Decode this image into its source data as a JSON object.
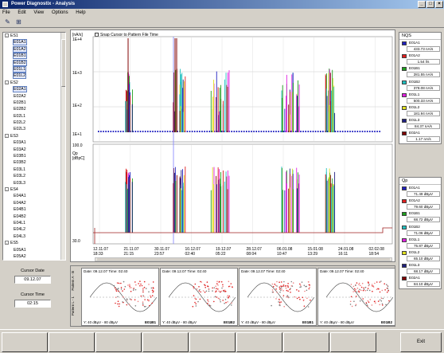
{
  "window": {
    "title": "Power Diagnostix - Analysis"
  },
  "menu": [
    "File",
    "Edit",
    "View",
    "Options",
    "Help"
  ],
  "tree": [
    {
      "label": "ES1",
      "level": 0,
      "expand": "-"
    },
    {
      "label": "E01A1",
      "level": 1,
      "selected": true
    },
    {
      "label": "E01A2",
      "level": 1,
      "selected": true
    },
    {
      "label": "E01B1",
      "level": 1,
      "selected": true
    },
    {
      "label": "E01B2",
      "level": 1,
      "selected": true
    },
    {
      "label": "E01L1",
      "level": 1,
      "selected": true
    },
    {
      "label": "E01L2",
      "level": 1,
      "selected": true
    },
    {
      "label": "ES2",
      "level": 0,
      "expand": "-"
    },
    {
      "label": "E02A1",
      "level": 1,
      "selected": true
    },
    {
      "label": "E02A2",
      "level": 1
    },
    {
      "label": "E02B1",
      "level": 1
    },
    {
      "label": "E02B2",
      "level": 1
    },
    {
      "label": "E02L1",
      "level": 1
    },
    {
      "label": "E02L2",
      "level": 1
    },
    {
      "label": "E02L3",
      "level": 1
    },
    {
      "label": "ES3",
      "level": 0,
      "expand": "-"
    },
    {
      "label": "E03A1",
      "level": 1
    },
    {
      "label": "E03A2",
      "level": 1
    },
    {
      "label": "E03B1",
      "level": 1
    },
    {
      "label": "E03B2",
      "level": 1
    },
    {
      "label": "E03L1",
      "level": 1
    },
    {
      "label": "E03L2",
      "level": 1
    },
    {
      "label": "E03L3",
      "level": 1
    },
    {
      "label": "ES4",
      "level": 0,
      "expand": "-"
    },
    {
      "label": "E04A1",
      "level": 1
    },
    {
      "label": "E04A2",
      "level": 1
    },
    {
      "label": "E04B1",
      "level": 1
    },
    {
      "label": "E04B2",
      "level": 1
    },
    {
      "label": "E04L1",
      "level": 1
    },
    {
      "label": "E04L2",
      "level": 1
    },
    {
      "label": "E04L3",
      "level": 1
    },
    {
      "label": "ES5",
      "level": 0,
      "expand": "-"
    },
    {
      "label": "E05A1",
      "level": 1
    },
    {
      "label": "E05A2",
      "level": 1
    }
  ],
  "cursor": {
    "date_label": "Cursor Date",
    "date": "09.12.07",
    "time_label": "Cursor Time",
    "time": "02:15"
  },
  "chart_top": {
    "unit": "[nA/s]",
    "snap_label": "Snap Cursor to Pattern File Time",
    "y_ticks": [
      "1E+4",
      "1E+3",
      "1E+2",
      "1E+1"
    ]
  },
  "chart_bottom": {
    "unit": "Qp [dBpC]",
    "y_ticks": [
      "100.0",
      "30.0"
    ],
    "x_ticks": [
      {
        "date": "12.11.07",
        "time": "18:33"
      },
      {
        "date": "21.11.07",
        "time": "21:15"
      },
      {
        "date": "30.11.07",
        "time": "23:57"
      },
      {
        "date": "10.12.07",
        "time": "02:40"
      },
      {
        "date": "19.12.07",
        "time": "05:22"
      },
      {
        "date": "28.12.07",
        "time": "08:04"
      },
      {
        "date": "06.01.08",
        "time": "10:47"
      },
      {
        "date": "15.01.08",
        "time": "13:29"
      },
      {
        "date": "24.01.08",
        "time": "16:11"
      },
      {
        "date": "02.02.08",
        "time": "18:54"
      }
    ]
  },
  "patterns": [
    {
      "header": "Date: 09.12.07   Time: 02:40",
      "range": "Y: 40 dBµV - 80 dBµV",
      "tag": "E01B1"
    },
    {
      "header": "Date: 09.12.07   Time: 02:40",
      "range": "Y: 40 dBµV - 80 dBµV",
      "tag": "E01B2"
    },
    {
      "header": "Date: 09.12.07   Time: 02:40",
      "range": "Y: 40 dBµV - 80 dBµV",
      "tag": "E01B1"
    },
    {
      "header": "Date: 09.12.07   Time: 02:40",
      "range": "Y: 40 dBµV - 80 dBµV",
      "tag": "E01B2"
    }
  ],
  "pattern_side_labels": {
    "top": "Pattern A - B",
    "bottom": "Pattern L - 1"
  },
  "nqs": {
    "title": "NQS",
    "items": [
      {
        "name": "E01A1",
        "value": "433.73 nA/s",
        "color": "#2020c0"
      },
      {
        "name": "E01A2",
        "value": "1.54 l/s",
        "color": "#e02020"
      },
      {
        "name": "E01B1",
        "value": "281.55 nA/s",
        "color": "#20a020"
      },
      {
        "name": "E01B2",
        "value": "378.08 nA/s",
        "color": "#20c0c0"
      },
      {
        "name": "E01L1",
        "value": "500.33 nA/s",
        "color": "#e020e0"
      },
      {
        "name": "E01L2",
        "value": "181.94 nA/s",
        "color": "#e0e020"
      },
      {
        "name": "E01L3",
        "value": "84.37 nA/s",
        "color": "#202080"
      },
      {
        "name": "E02A1",
        "value": "1.17 nA/s",
        "color": "#800000"
      }
    ]
  },
  "qp": {
    "title": "Qp",
    "items": [
      {
        "name": "E01A1",
        "value": "71.49 dBµV",
        "color": "#2020c0"
      },
      {
        "name": "E01A2",
        "value": "79.60 dBµV",
        "color": "#e02020"
      },
      {
        "name": "E01B1",
        "value": "68.72 dBµV",
        "color": "#20a020"
      },
      {
        "name": "E01B2",
        "value": "71.06 dBµV",
        "color": "#20c0c0"
      },
      {
        "name": "E01L1",
        "value": "75.87 dBµV",
        "color": "#e020e0"
      },
      {
        "name": "E01L2",
        "value": "65.10 dBµV",
        "color": "#e0e020"
      },
      {
        "name": "E01L3",
        "value": "68.17 dBµV",
        "color": "#202080"
      },
      {
        "name": "E02A1",
        "value": "84.10 dBµV",
        "color": "#800000"
      }
    ]
  },
  "buttons": {
    "exit": "Exit"
  }
}
